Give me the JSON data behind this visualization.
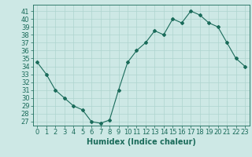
{
  "x": [
    0,
    1,
    2,
    3,
    4,
    5,
    6,
    7,
    8,
    9,
    10,
    11,
    12,
    13,
    14,
    15,
    16,
    17,
    18,
    19,
    20,
    21,
    22,
    23
  ],
  "y": [
    34.5,
    33.0,
    31.0,
    30.0,
    29.0,
    28.5,
    27.0,
    26.8,
    27.2,
    31.0,
    34.5,
    36.0,
    37.0,
    38.5,
    38.0,
    40.0,
    39.5,
    41.0,
    40.5,
    39.5,
    39.0,
    37.0,
    35.0,
    34.0
  ],
  "line_color": "#1a6b5a",
  "marker": "D",
  "marker_size": 2,
  "bg_color": "#cde8e5",
  "grid_color": "#aed4cf",
  "xlabel": "Humidex (Indice chaleur)",
  "ylabel_ticks": [
    27,
    28,
    29,
    30,
    31,
    32,
    33,
    34,
    35,
    36,
    37,
    38,
    39,
    40,
    41
  ],
  "ylim": [
    26.5,
    41.8
  ],
  "xlim": [
    -0.5,
    23.5
  ],
  "xlabel_fontsize": 7,
  "tick_fontsize": 6
}
